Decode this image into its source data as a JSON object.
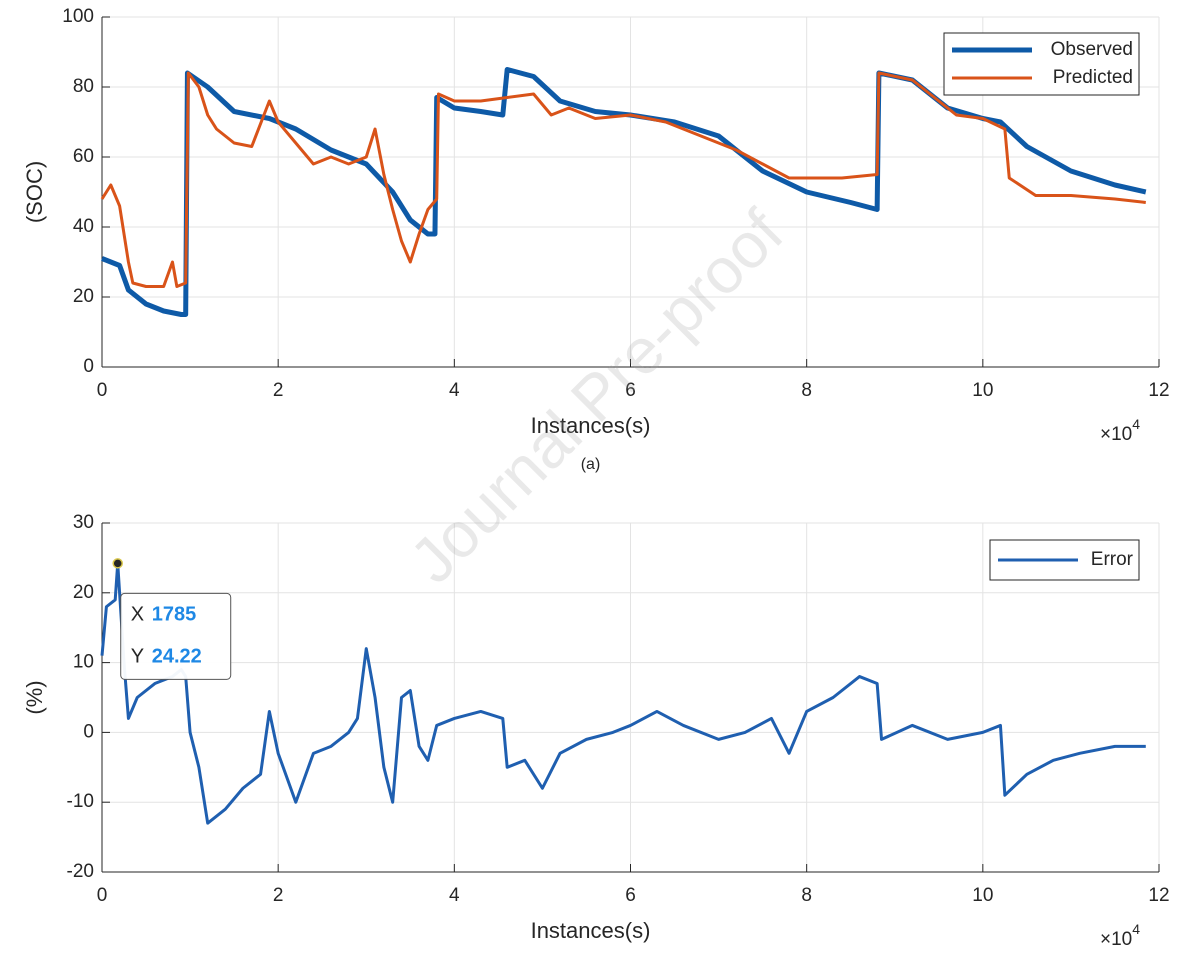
{
  "watermark": "Journal Pre-proof",
  "chart_data": [
    {
      "type": "line",
      "caption": "(a)",
      "xlabel": "Instances(s)",
      "ylabel": "(SOC)",
      "x_multiplier": "×10",
      "x_exponent": 4,
      "xlim": [
        0,
        12
      ],
      "xticks": [
        0,
        2,
        4,
        6,
        8,
        10,
        12
      ],
      "ylim": [
        0,
        100
      ],
      "yticks": [
        0,
        20,
        40,
        60,
        80,
        100
      ],
      "grid": true,
      "legend": "northeast",
      "series": [
        {
          "name": "Observed",
          "color": "#0e5aa7",
          "width": 5,
          "x": [
            0,
            0.2,
            0.3,
            0.5,
            0.7,
            0.9,
            0.95,
            0.97,
            1.2,
            1.5,
            1.9,
            2.2,
            2.6,
            3.0,
            3.3,
            3.5,
            3.7,
            3.78,
            3.8,
            4.0,
            4.3,
            4.55,
            4.6,
            4.9,
            5.2,
            5.6,
            6.0,
            6.5,
            7.0,
            7.5,
            8.0,
            8.5,
            8.8,
            8.82,
            9.2,
            9.6,
            10.0,
            10.2,
            10.5,
            11.0,
            11.5,
            11.85
          ],
          "values": [
            31,
            29,
            22,
            18,
            16,
            15,
            15,
            84,
            80,
            73,
            71,
            68,
            62,
            58,
            50,
            42,
            38,
            38,
            77,
            74,
            73,
            72,
            85,
            83,
            76,
            73,
            72,
            70,
            66,
            56,
            50,
            47,
            45,
            84,
            82,
            74,
            71,
            70,
            63,
            56,
            52,
            50
          ]
        },
        {
          "name": "Predicted",
          "color": "#d95319",
          "width": 3,
          "x": [
            0,
            0.1,
            0.2,
            0.3,
            0.35,
            0.5,
            0.7,
            0.8,
            0.85,
            0.95,
            0.98,
            1.1,
            1.2,
            1.3,
            1.5,
            1.7,
            1.9,
            2.0,
            2.2,
            2.4,
            2.6,
            2.8,
            3.0,
            3.1,
            3.2,
            3.3,
            3.4,
            3.5,
            3.6,
            3.7,
            3.8,
            3.82,
            4.0,
            4.3,
            4.6,
            4.9,
            5.1,
            5.3,
            5.6,
            6.0,
            6.4,
            6.8,
            7.2,
            7.5,
            7.8,
            8.0,
            8.4,
            8.8,
            8.82,
            9.2,
            9.5,
            9.7,
            10.0,
            10.25,
            10.3,
            10.6,
            11.0,
            11.5,
            11.85
          ],
          "values": [
            48,
            52,
            46,
            30,
            24,
            23,
            23,
            30,
            23,
            24,
            84,
            80,
            72,
            68,
            64,
            63,
            76,
            70,
            64,
            58,
            60,
            58,
            60,
            68,
            55,
            45,
            36,
            30,
            38,
            45,
            48,
            78,
            76,
            76,
            77,
            78,
            72,
            74,
            71,
            72,
            70,
            66,
            62,
            58,
            54,
            54,
            54,
            55,
            84,
            82,
            76,
            72,
            71,
            68,
            54,
            49,
            49,
            48,
            47
          ]
        }
      ]
    },
    {
      "type": "line",
      "xlabel": "Instances(s)",
      "ylabel": "(%)",
      "x_multiplier": "×10",
      "x_exponent": 4,
      "xlim": [
        0,
        12
      ],
      "xticks": [
        0,
        2,
        4,
        6,
        8,
        10,
        12
      ],
      "ylim": [
        -20,
        30
      ],
      "yticks": [
        -20,
        -10,
        0,
        10,
        20,
        30
      ],
      "grid": true,
      "legend": "northeast",
      "datatip": {
        "x_label": "X",
        "x": 1785,
        "y_label": "Y",
        "y": 24.22
      },
      "series": [
        {
          "name": "Error",
          "color": "#1f5fb0",
          "width": 3,
          "x": [
            0,
            0.05,
            0.15,
            0.1785,
            0.25,
            0.3,
            0.4,
            0.6,
            0.8,
            0.9,
            0.95,
            1.0,
            1.1,
            1.2,
            1.4,
            1.6,
            1.8,
            1.9,
            2.0,
            2.2,
            2.4,
            2.6,
            2.8,
            2.9,
            3.0,
            3.1,
            3.2,
            3.3,
            3.4,
            3.5,
            3.6,
            3.7,
            3.8,
            4.0,
            4.3,
            4.55,
            4.6,
            4.8,
            5.0,
            5.2,
            5.5,
            5.8,
            6.0,
            6.3,
            6.6,
            7.0,
            7.3,
            7.6,
            7.8,
            8.0,
            8.3,
            8.6,
            8.8,
            8.85,
            9.2,
            9.6,
            10.0,
            10.2,
            10.25,
            10.5,
            10.8,
            11.1,
            11.5,
            11.85
          ],
          "values": [
            11,
            18,
            19,
            24.22,
            10,
            2,
            5,
            7,
            8,
            9,
            8,
            0,
            -5,
            -13,
            -11,
            -8,
            -6,
            3,
            -3,
            -10,
            -3,
            -2,
            0,
            2,
            12,
            5,
            -5,
            -10,
            5,
            6,
            -2,
            -4,
            1,
            2,
            3,
            2,
            -5,
            -4,
            -8,
            -3,
            -1,
            0,
            1,
            3,
            1,
            -1,
            0,
            2,
            -3,
            3,
            5,
            8,
            7,
            -1,
            1,
            -1,
            0,
            1,
            -9,
            -6,
            -4,
            -3,
            -2,
            -2
          ]
        }
      ]
    }
  ]
}
